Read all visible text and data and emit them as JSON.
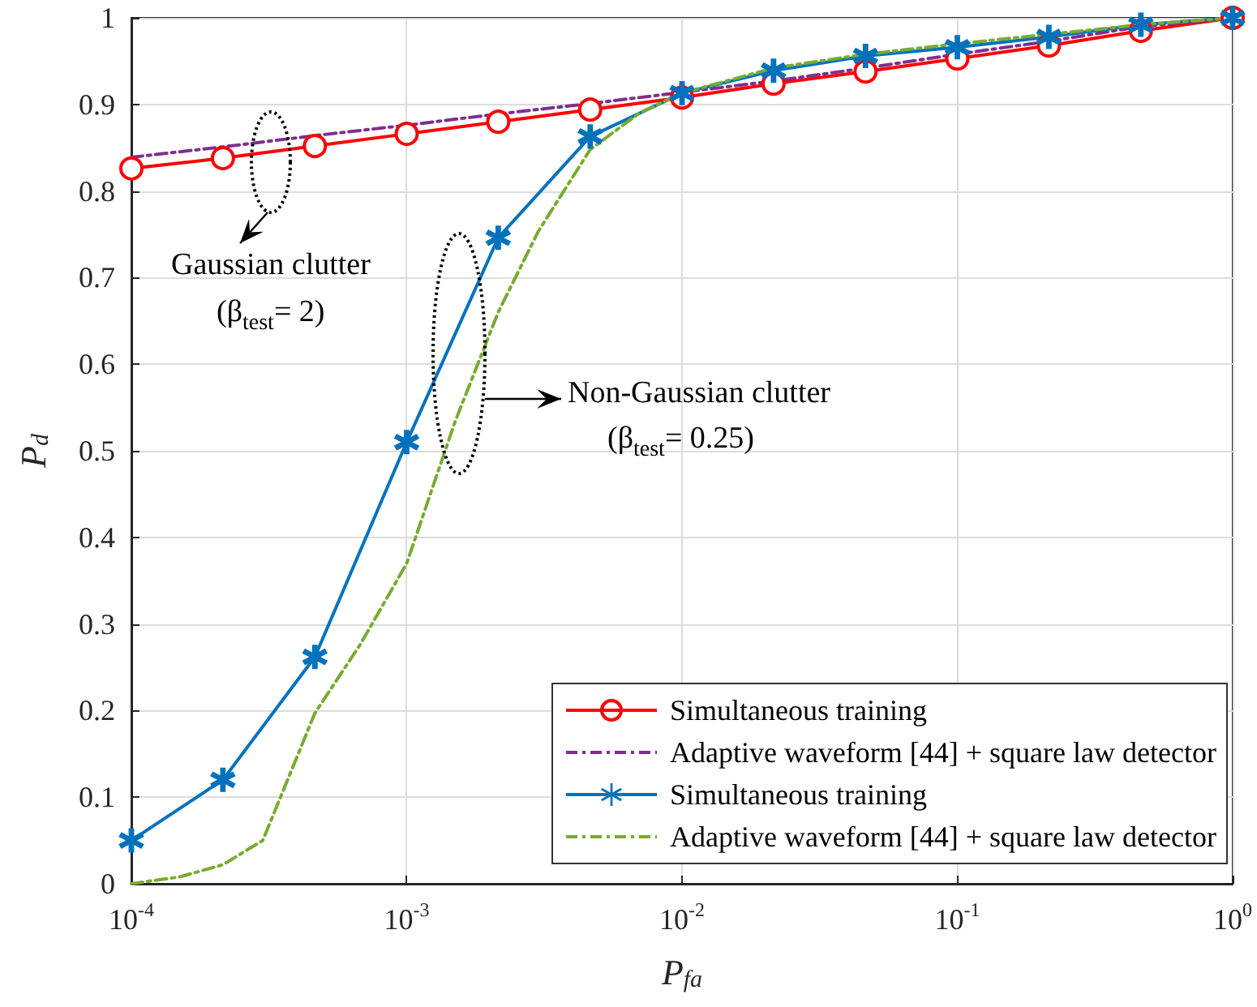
{
  "chart_data": {
    "type": "line",
    "xlabel": "P$_{fa}$",
    "ylabel": "P$_{d}$",
    "log": "x",
    "grid": true,
    "legend": "bottom right",
    "xlim": [
      0.0001,
      1
    ],
    "xticks": [
      {
        "value": 0.0001,
        "label": "10$^{-4}$"
      },
      {
        "value": 0.001,
        "label": "10$^{-3}$"
      },
      {
        "value": 0.01,
        "label": "10$^{-2}$"
      },
      {
        "value": 0.1,
        "label": "10$^{-1}$"
      },
      {
        "value": 1,
        "label": "10$^{0}$"
      }
    ],
    "ylim": [
      0,
      1
    ],
    "yticks": [
      0,
      0.1,
      0.2,
      0.3,
      0.4,
      0.5,
      0.6,
      0.7,
      0.8,
      0.9,
      1
    ],
    "annotations": [
      "Gaussian clutter",
      "(β$_{test}$= 2)",
      "Non-Gaussian clutter",
      "(β$_{test}$= 0.25)"
    ],
    "x": [
      0.0001,
      0.000215,
      0.000464,
      0.001,
      0.00215,
      0.00464,
      0.01,
      0.0215,
      0.0464,
      0.1,
      0.215,
      0.464,
      1
    ],
    "series": [
      {
        "name": "Simultaneous training",
        "color": "#ff0000",
        "marker": "circle",
        "line_style": "solid",
        "values": [
          0.826,
          0.838,
          0.852,
          0.866,
          0.88,
          0.894,
          0.908,
          0.924,
          0.938,
          0.953,
          0.968,
          0.985,
          1
        ]
      },
      {
        "name": "Adaptive waveform [44] + square law detector",
        "color": "#7e2f8e",
        "marker": "none",
        "line_style": "dashed",
        "values": [
          0.839,
          0.851,
          0.864,
          0.876,
          0.889,
          0.901,
          0.914,
          0.927,
          0.942,
          0.958,
          0.973,
          0.99,
          1
        ]
      },
      {
        "name": "Simultaneous training",
        "color": "#0072bd",
        "marker": "star",
        "line_style": "solid",
        "values": [
          0.05,
          0.12,
          0.262,
          0.51,
          0.746,
          0.863,
          0.913,
          0.939,
          0.956,
          0.966,
          0.978,
          0.992,
          1
        ]
      },
      {
        "name": "Adaptive waveform [44] + square law detector",
        "color": "#77ac30",
        "marker": "none",
        "line_style": "dashed",
        "x": [
          0.0001,
          0.00015,
          0.000215,
          0.0003,
          0.000464,
          0.00068,
          0.001,
          0.0015,
          0.00215,
          0.003,
          0.00464,
          0.007,
          0.01,
          0.0215,
          0.0464,
          0.1,
          0.215,
          0.464,
          1
        ],
        "values": [
          0,
          0.008,
          0.022,
          0.05,
          0.197,
          0.277,
          0.37,
          0.534,
          0.66,
          0.753,
          0.848,
          0.89,
          0.913,
          0.942,
          0.958,
          0.97,
          0.981,
          0.992,
          1
        ]
      }
    ]
  }
}
